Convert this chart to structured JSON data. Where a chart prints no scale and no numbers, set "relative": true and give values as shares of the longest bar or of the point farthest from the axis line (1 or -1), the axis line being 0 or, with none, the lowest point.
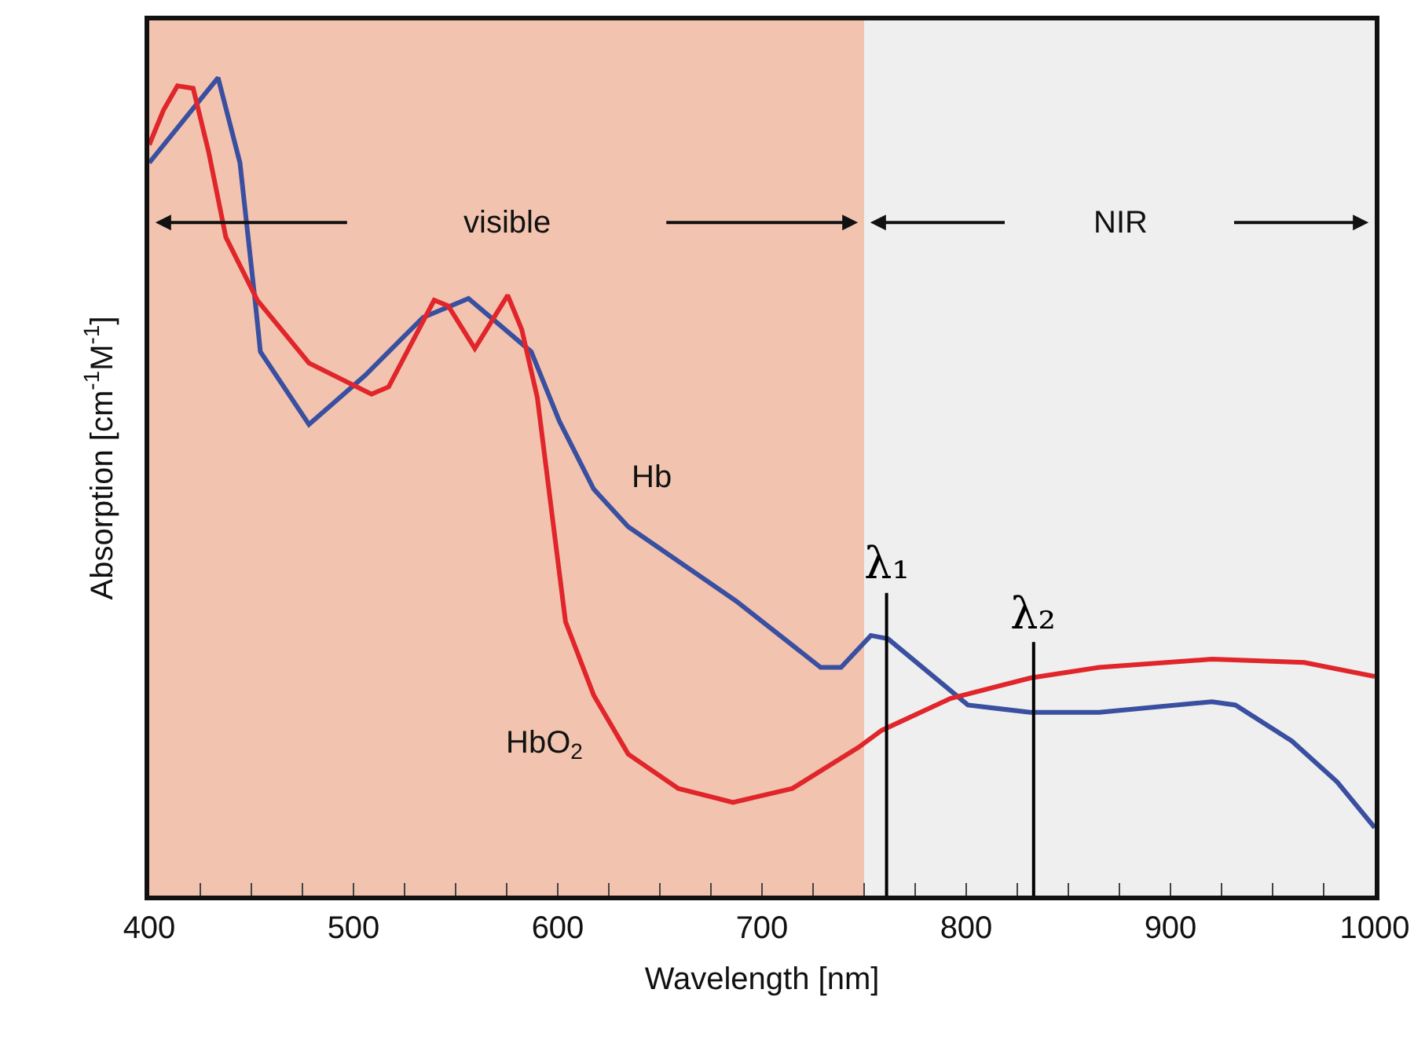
{
  "chart_data": {
    "type": "line",
    "relative": true,
    "xlabel": "Wavelength [nm]",
    "ylabel": "Absorption [cm$^{-1}$M$^{-1}$]",
    "xlim": [
      400,
      1000
    ],
    "xticks": [
      400,
      {
        "value": 425,
        "label": null
      },
      {
        "value": 450,
        "label": null
      },
      {
        "value": 475,
        "label": null
      },
      500,
      {
        "value": 525,
        "label": null
      },
      {
        "value": 550,
        "label": null
      },
      {
        "value": 575,
        "label": null
      },
      600,
      {
        "value": 625,
        "label": null
      },
      {
        "value": 650,
        "label": null
      },
      {
        "value": 675,
        "label": null
      },
      700,
      {
        "value": 725,
        "label": null
      },
      {
        "value": 750,
        "label": null
      },
      {
        "value": 775,
        "label": null
      },
      800,
      {
        "value": 825,
        "label": null
      },
      {
        "value": 850,
        "label": null
      },
      {
        "value": 875,
        "label": null
      },
      900,
      {
        "value": 925,
        "label": null
      },
      {
        "value": 950,
        "label": null
      },
      {
        "value": 975,
        "label": null
      },
      1000
    ],
    "grid": false,
    "legend": false,
    "marker": "none",
    "line_style": "solid",
    "series": [
      {
        "name": "Hb",
        "color": "#3a4fa0",
        "x": [
          400,
          433.7,
          444.4,
          452.1,
          454.4,
          478.2,
          505.7,
          534.1,
          556.3,
          587.0,
          600.8,
          617.6,
          634.5,
          687.4,
          728.7,
          738.7,
          753.3,
          761.7,
          800.8,
          831.4,
          865.1,
          920.3,
          931.8,
          959.4,
          981.6,
          1000
        ],
        "values": [
          0.896,
          1,
          0.896,
          0.721,
          0.665,
          0.576,
          0.636,
          0.707,
          0.73,
          0.665,
          0.58,
          0.497,
          0.451,
          0.36,
          0.279,
          0.279,
          0.318,
          0.314,
          0.233,
          0.224,
          0.224,
          0.237,
          0.233,
          0.189,
          0.139,
          0.083
        ]
      },
      {
        "name": "HbO$_{2}$",
        "color": "#e0262b",
        "x": [
          400,
          406.9,
          413.8,
          421.5,
          429.1,
          437.5,
          452.9,
          478.2,
          508.8,
          517.2,
          539.5,
          546.4,
          559.4,
          575.5,
          582.4,
          590.0,
          603.8,
          617.6,
          634.5,
          659.0,
          685.8,
          714.9,
          747.1,
          758.6,
          792.3,
          831.4,
          865.1,
          920.3,
          965.5,
          1000
        ],
        "values": [
          0.918,
          0.96,
          0.99,
          0.987,
          0.909,
          0.805,
          0.728,
          0.651,
          0.613,
          0.622,
          0.728,
          0.721,
          0.669,
          0.734,
          0.692,
          0.609,
          0.335,
          0.245,
          0.173,
          0.131,
          0.114,
          0.131,
          0.181,
          0.202,
          0.241,
          0.266,
          0.279,
          0.289,
          0.285,
          0.268
        ]
      }
    ],
    "bands": [
      {
        "axis": "x",
        "from": 400,
        "to": 750,
        "label": "visible",
        "color": "#f2c4b0"
      },
      {
        "axis": "x",
        "from": 750,
        "to": 1000,
        "label": "NIR",
        "color": "#efefef"
      }
    ],
    "ref_lines": [
      {
        "axis": "x",
        "value": 761,
        "label": "λ₁",
        "color": "#000000"
      },
      {
        "axis": "x",
        "value": 833,
        "label": "λ₂",
        "color": "#000000"
      }
    ]
  }
}
